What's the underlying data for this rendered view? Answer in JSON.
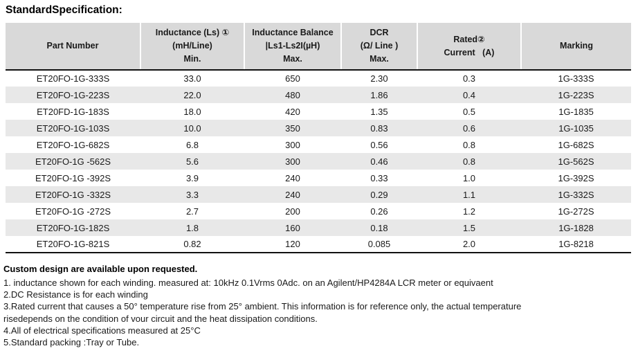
{
  "title": "StandardSpecification:",
  "table": {
    "columns": [
      {
        "id": "part-number",
        "lines": [
          "Part Number"
        ]
      },
      {
        "id": "inductance-min",
        "lines": [
          "Inductance (Ls) ①",
          "(mH/Line)",
          "Min."
        ]
      },
      {
        "id": "inductance-balance-max",
        "lines": [
          "Inductance Balance",
          "|Ls1-Ls2I(µH)",
          "Max."
        ]
      },
      {
        "id": "dcr-max",
        "lines": [
          "DCR",
          "(Ω/ Line )",
          "Max."
        ]
      },
      {
        "id": "rated-current",
        "lines": [
          "Rated②",
          "Current   (A)"
        ]
      },
      {
        "id": "marking",
        "lines": [
          "Marking"
        ]
      }
    ],
    "rows": [
      [
        "ET20FO-1G-333S",
        "33.0",
        "650",
        "2.30",
        "0.3",
        "1G-333S"
      ],
      [
        "ET20FO-1G-223S",
        "22.0",
        "480",
        "1.86",
        "0.4",
        "1G-223S"
      ],
      [
        "ET20FD-1G-183S",
        "18.0",
        "420",
        "1.35",
        "0.5",
        "1G-1835"
      ],
      [
        "ET20FO-1G-103S",
        "10.0",
        "350",
        "0.83",
        "0.6",
        "1G-1035"
      ],
      [
        "ET20FO-1G-682S",
        "6.8",
        "300",
        "0.56",
        "0.8",
        "1G-682S"
      ],
      [
        "ET20FO-1G -562S",
        "5.6",
        "300",
        "0.46",
        "0.8",
        "1G-562S"
      ],
      [
        "ET20FO-1G -392S",
        "3.9",
        "240",
        "0.33",
        "1.0",
        "1G-392S"
      ],
      [
        "ET20FO-1G -332S",
        "3.3",
        "240",
        "0.29",
        "1.1",
        "1G-332S"
      ],
      [
        "ET20FO-1G -272S",
        "2.7",
        "200",
        "0.26",
        "1.2",
        "1G-272S"
      ],
      [
        "ET20FO-1G-182S",
        "1.8",
        "160",
        "0.18",
        "1.5",
        "1G-1828"
      ],
      [
        "ET20FO-1G-821S",
        "0.82",
        "120",
        "0.085",
        "2.0",
        "1G-8218"
      ]
    ]
  },
  "notes": {
    "custom": "Custom design are available upon requested.",
    "items": [
      "1. inductance shown for each winding. measured at: 10kHz 0.1Vrms 0Adc. on an Agilent/HP4284A LCR meter or equivaent",
      "2.DC Resistance is for each winding",
      "3.Rated current that causes a 50° temperature rise from 25° ambient. This information is for reference only, the actual temperature",
      "risedepends on the condition of vour circuit and the heat dissipation conditions.",
      "4.All of electrical specifications measured at 25°C",
      "5.Standard packing :Tray or Tube."
    ]
  },
  "colors": {
    "header_bg": "#d9d9d9",
    "row_alt_bg": "#e8e8e8",
    "rule_dark": "#111111",
    "text": "#191919"
  }
}
